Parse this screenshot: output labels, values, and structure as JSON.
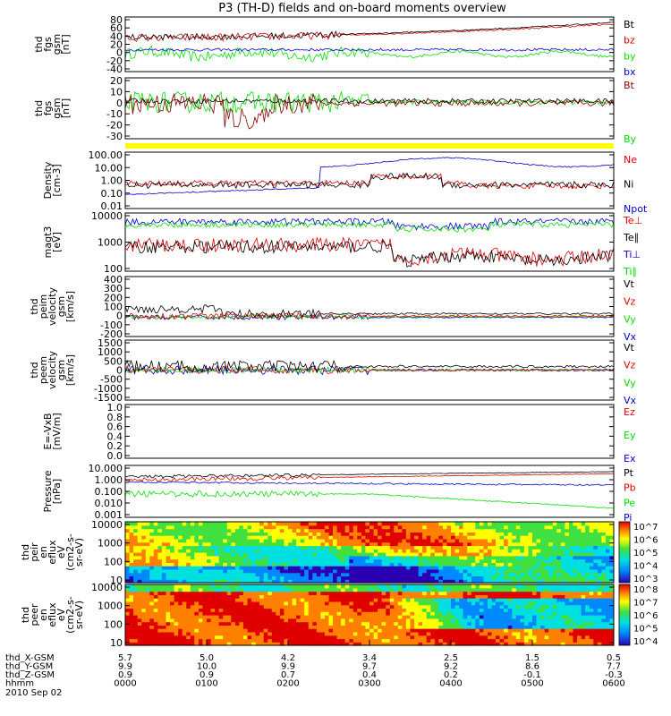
{
  "title": "P3 (TH-D) fields and on-board moments overview",
  "date_label": "2010 Sep 02",
  "colors": {
    "black": "#000000",
    "red": "#e00000",
    "blue": "#0000d0",
    "green": "#00e000",
    "darkred": "#8b0000",
    "yellow": "#ffff00"
  },
  "bottom_axis": {
    "rows": [
      {
        "label": "thd_X-GSM",
        "values": [
          "5.7",
          "5.0",
          "4.2",
          "3.4",
          "2.5",
          "1.5",
          "0.5"
        ]
      },
      {
        "label": "thd_Y-GSM",
        "values": [
          "9.9",
          "10.0",
          "9.9",
          "9.7",
          "9.2",
          "8.6",
          "7.7"
        ]
      },
      {
        "label": "thd_Z-GSM",
        "values": [
          "0.9",
          "0.9",
          "0.7",
          "0.4",
          "0.2",
          "-0.1",
          "-0.3"
        ]
      },
      {
        "label": "hhmm",
        "values": [
          "0000",
          "0100",
          "0200",
          "0300",
          "0400",
          "0500",
          "0600"
        ]
      }
    ]
  },
  "chart_data": [
    {
      "type": "line",
      "id": "fgs",
      "ylabel": [
        "thd",
        "fgs",
        "gsm",
        "[nT]"
      ],
      "yticks": [
        "80",
        "60",
        "40",
        "20",
        "0",
        "-20",
        "-40"
      ],
      "legend": [
        {
          "name": "Bt",
          "color": "#000000"
        },
        {
          "name": "bz",
          "color": "#e00000"
        },
        {
          "name": "by",
          "color": "#00e000"
        },
        {
          "name": "bx",
          "color": "#0000d0"
        }
      ]
    },
    {
      "type": "line",
      "id": "fgs-dsl",
      "ylabel": [
        "thd",
        "fgs",
        "gsm",
        "[nT]"
      ],
      "yticks": [
        "20",
        "10",
        "0",
        "-10",
        "-20",
        "-30"
      ],
      "legend": [
        {
          "name": "Bt",
          "color": "#8b0000"
        },
        {
          "name": "By",
          "color": "#00e000"
        }
      ]
    },
    {
      "type": "line",
      "id": "density",
      "ylabel": [
        "Density",
        "[cm-3]"
      ],
      "yticks": [
        "100.00",
        "10.00",
        "1.00",
        "0.10",
        "0.01"
      ],
      "legend": [
        {
          "name": "Ne",
          "color": "#e00000"
        },
        {
          "name": "Ni",
          "color": "#000000"
        },
        {
          "name": "Npot",
          "color": "#0000d0"
        }
      ]
    },
    {
      "type": "line",
      "id": "temperature",
      "ylabel": [
        "magt3",
        "[eV]"
      ],
      "yticks": [
        "10000",
        "1000",
        "100"
      ],
      "legend": [
        {
          "name": "Te⊥",
          "color": "#e00000"
        },
        {
          "name": "Te∥",
          "color": "#000000"
        },
        {
          "name": "Ti⊥",
          "color": "#0000d0"
        },
        {
          "name": "Ti∥",
          "color": "#00e000"
        }
      ]
    },
    {
      "type": "line",
      "id": "ion-velocity",
      "ylabel": [
        "thd",
        "peim",
        "velocity",
        "gsm",
        "[km/s]"
      ],
      "yticks": [
        "400",
        "300",
        "200",
        "100",
        "0",
        "-100",
        "-200"
      ],
      "legend": [
        {
          "name": "Vt",
          "color": "#000000"
        },
        {
          "name": "Vz",
          "color": "#e00000"
        },
        {
          "name": "Vy",
          "color": "#00e000"
        },
        {
          "name": "Vx",
          "color": "#0000d0"
        }
      ]
    },
    {
      "type": "line",
      "id": "electron-velocity",
      "ylabel": [
        "thd",
        "peem",
        "velocity",
        "gsm",
        "[km/s]"
      ],
      "yticks": [
        "1500",
        "1000",
        "500",
        "0",
        "-500",
        "-1000",
        "-1500"
      ],
      "legend": [
        {
          "name": "Vt",
          "color": "#000000"
        },
        {
          "name": "Vz",
          "color": "#e00000"
        },
        {
          "name": "Vy",
          "color": "#00e000"
        },
        {
          "name": "Vx",
          "color": "#0000d0"
        }
      ]
    },
    {
      "type": "line",
      "id": "efield",
      "ylabel": [
        "E=-VxB",
        "[mV/m]"
      ],
      "yticks": [
        "1.0",
        "0.8",
        "0.6",
        "0.4",
        "0.2",
        "0.0"
      ],
      "legend": [
        {
          "name": "Ez",
          "color": "#e00000"
        },
        {
          "name": "Ey",
          "color": "#00e000"
        },
        {
          "name": "Ex",
          "color": "#0000d0"
        }
      ]
    },
    {
      "type": "line",
      "id": "pressure",
      "ylabel": [
        "Pressure",
        "[nPa]"
      ],
      "yticks": [
        "10.000",
        "1.000",
        "0.100",
        "0.010",
        "0.001"
      ],
      "legend": [
        {
          "name": "Pt",
          "color": "#000000"
        },
        {
          "name": "Pb",
          "color": "#e00000"
        },
        {
          "name": "Pe",
          "color": "#00e000"
        },
        {
          "name": "Pi",
          "color": "#0000d0"
        }
      ]
    },
    {
      "type": "heatmap",
      "id": "ion-spectrogram",
      "ylabel": [
        "thd",
        "peir",
        "en",
        "eflux",
        "eV",
        "(cm2-s-",
        "sr-eV)"
      ],
      "yticks": [
        "10000",
        "1000",
        "100",
        "10"
      ],
      "colorbar": [
        "10^7",
        "10^6",
        "10^5",
        "10^4",
        "10^3"
      ]
    },
    {
      "type": "heatmap",
      "id": "electron-spectrogram",
      "ylabel": [
        "thd",
        "peer",
        "en",
        "eflux",
        "eV",
        "(cm2-s-",
        "sr-eV)"
      ],
      "yticks": [
        "10000",
        "1000",
        "100",
        "10"
      ],
      "colorbar": [
        "10^8",
        "10^7",
        "10^6",
        "10^5",
        "10^4"
      ]
    }
  ]
}
